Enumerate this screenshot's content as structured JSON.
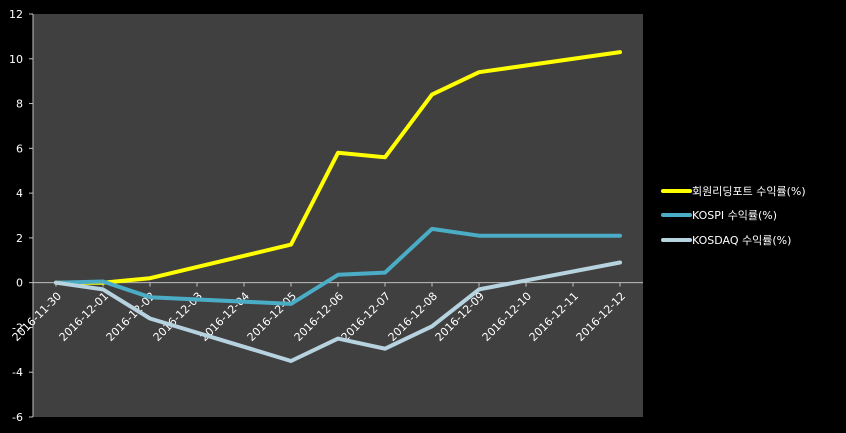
{
  "chart_data": {
    "type": "line",
    "title": "",
    "xlabel": "",
    "ylabel": "",
    "ylim": [
      -6,
      12
    ],
    "yticks": [
      12,
      10,
      8,
      6,
      4,
      2,
      0,
      -2,
      -4,
      -6
    ],
    "grid": false,
    "legend_placement": "right",
    "background_colors": {
      "page": "#000000",
      "plot": "#404040",
      "axis": "#bfbfbf",
      "text": "#ffffff"
    },
    "x": [
      "2016-11-30",
      "2016-12-01",
      "2016-12-02",
      "2016-12-03",
      "2016-12-04",
      "2016-12-05",
      "2016-12-06",
      "2016-12-07",
      "2016-12-08",
      "2016-12-09",
      "2016-12-10",
      "2016-12-11",
      "2016-12-12"
    ],
    "series": [
      {
        "name": "회원리딩포트 수익률(%)",
        "color": "#ffff00",
        "values": [
          0.0,
          0.0,
          0.2,
          null,
          null,
          1.7,
          5.8,
          5.6,
          8.4,
          9.4,
          null,
          null,
          10.3
        ]
      },
      {
        "name": "KOSPI 수익률(%)",
        "color": "#4bacc6",
        "values": [
          0.0,
          0.05,
          -0.65,
          null,
          null,
          -0.95,
          0.35,
          0.45,
          2.4,
          2.1,
          null,
          null,
          2.1
        ]
      },
      {
        "name": "KOSDAQ 수익률(%)",
        "color": "#b7d3e0",
        "values": [
          0.0,
          -0.3,
          -1.6,
          null,
          null,
          -3.5,
          -2.5,
          -2.95,
          -1.95,
          -0.3,
          null,
          null,
          0.9
        ]
      }
    ]
  }
}
